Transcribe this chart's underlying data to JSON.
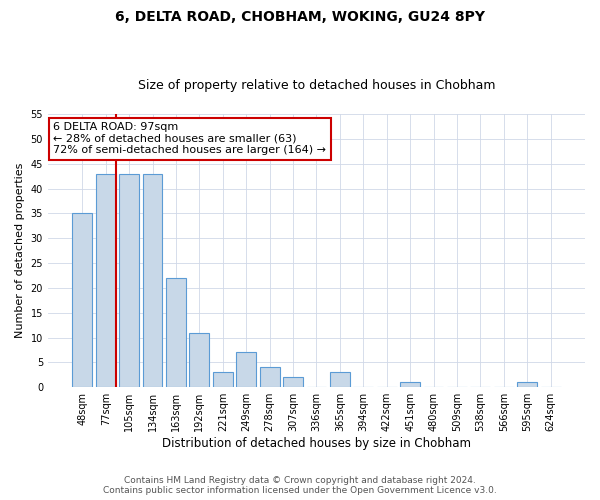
{
  "title": "6, DELTA ROAD, CHOBHAM, WOKING, GU24 8PY",
  "subtitle": "Size of property relative to detached houses in Chobham",
  "xlabel": "Distribution of detached houses by size in Chobham",
  "ylabel": "Number of detached properties",
  "bin_labels": [
    "48sqm",
    "77sqm",
    "105sqm",
    "134sqm",
    "163sqm",
    "192sqm",
    "221sqm",
    "249sqm",
    "278sqm",
    "307sqm",
    "336sqm",
    "365sqm",
    "394sqm",
    "422sqm",
    "451sqm",
    "480sqm",
    "509sqm",
    "538sqm",
    "566sqm",
    "595sqm",
    "624sqm"
  ],
  "bar_heights": [
    35,
    43,
    43,
    43,
    22,
    11,
    3,
    7,
    4,
    2,
    0,
    3,
    0,
    0,
    1,
    0,
    0,
    0,
    0,
    1,
    0
  ],
  "bar_color": "#c8d8e8",
  "bar_edge_color": "#5b9bd5",
  "ylim": [
    0,
    55
  ],
  "yticks": [
    0,
    5,
    10,
    15,
    20,
    25,
    30,
    35,
    40,
    45,
    50,
    55
  ],
  "grid_color": "#d0d8e8",
  "vline_x_index": 1,
  "vline_color": "#cc0000",
  "annotation_text": "6 DELTA ROAD: 97sqm\n← 28% of detached houses are smaller (63)\n72% of semi-detached houses are larger (164) →",
  "annotation_box_color": "#ffffff",
  "annotation_box_edge": "#cc0000",
  "footer_line1": "Contains HM Land Registry data © Crown copyright and database right 2024.",
  "footer_line2": "Contains public sector information licensed under the Open Government Licence v3.0.",
  "title_fontsize": 10,
  "subtitle_fontsize": 9,
  "xlabel_fontsize": 8.5,
  "ylabel_fontsize": 8,
  "tick_fontsize": 7,
  "footer_fontsize": 6.5,
  "annotation_fontsize": 8
}
